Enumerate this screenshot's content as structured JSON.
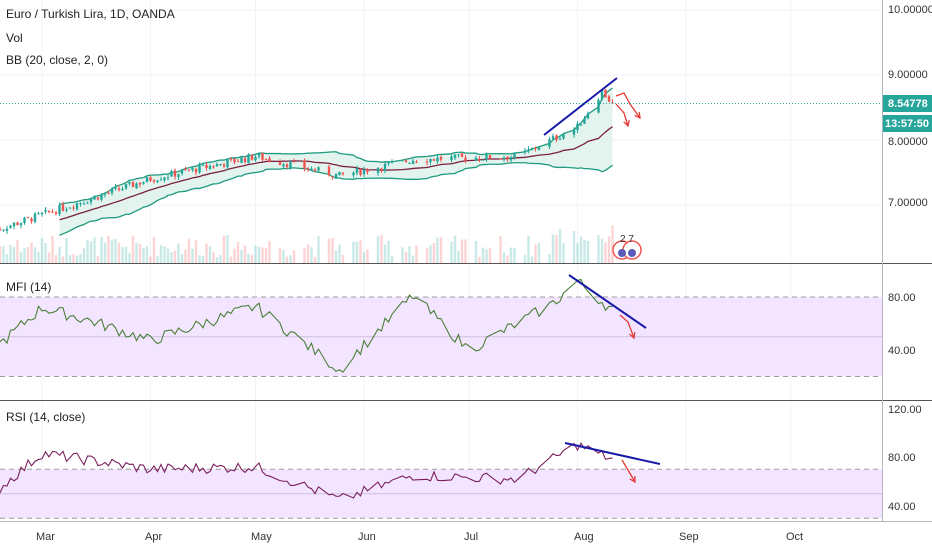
{
  "legend": {
    "main_title": "Euro / Turkish Lira, 1D, OANDA",
    "vol": "Vol",
    "bb": "BB (20, close, 2, 0)",
    "mfi": "MFI (14)",
    "rsi": "RSI (14, close)"
  },
  "price_tag": {
    "value": "8.54778",
    "countdown": "13:57:50",
    "color": "#26a69a"
  },
  "badge": {
    "text": "2 7"
  },
  "colors": {
    "up": "#26a69a",
    "down": "#ef5350",
    "bb_basis": "#7b1f3f",
    "bb_band": "#1e9a7e",
    "bb_fill": "#e3f4ef",
    "osc_fill": "#f3e5ff",
    "mfi_line": "#4a7f36",
    "rsi_line": "#7b1f5c",
    "trendline": "#1a1aa8",
    "arrow": "#e53935",
    "price_line": "#26a69a"
  },
  "chart_data": [
    {
      "type": "candlestick",
      "title": "Euro / Turkish Lira, 1D, OANDA",
      "y_ticks": [
        "10.00000",
        "9.00000",
        "8.00000",
        "7.00000"
      ],
      "ylim": [
        6.5,
        10.1
      ],
      "x_ticks": [
        "Mar",
        "Apr",
        "May",
        "Jun",
        "Jul",
        "Aug",
        "Sep",
        "Oct"
      ],
      "last_price": 8.54778,
      "price_key_points": [
        {
          "date": "Feb 15",
          "close": 6.6
        },
        {
          "date": "Mar 1",
          "close": 6.85
        },
        {
          "date": "Apr 1",
          "close": 7.4
        },
        {
          "date": "May 1",
          "close": 7.75
        },
        {
          "date": "May 25",
          "close": 7.45
        },
        {
          "date": "Jun 15",
          "close": 7.7
        },
        {
          "date": "Jul 15",
          "close": 7.75
        },
        {
          "date": "Aug 1",
          "close": 8.2
        },
        {
          "date": "Aug 8",
          "close": 8.75
        },
        {
          "date": "Aug 11",
          "close": 8.55
        }
      ]
    },
    {
      "type": "line",
      "title": "MFI (14)",
      "y_ticks": [
        "80.00",
        "40.00"
      ],
      "ylim": [
        20,
        100
      ],
      "bands": [
        80,
        20
      ],
      "key_points": [
        {
          "date": "Feb 15",
          "value": 40
        },
        {
          "date": "Mar 1",
          "value": 72
        },
        {
          "date": "Mar 15",
          "value": 62
        },
        {
          "date": "Apr 1",
          "value": 47
        },
        {
          "date": "May 1",
          "value": 73
        },
        {
          "date": "May 25",
          "value": 25
        },
        {
          "date": "Jun 15",
          "value": 81
        },
        {
          "date": "Jul 1",
          "value": 40
        },
        {
          "date": "Jul 25",
          "value": 75
        },
        {
          "date": "Aug 1",
          "value": 92
        },
        {
          "date": "Aug 11",
          "value": 70
        }
      ]
    },
    {
      "type": "line",
      "title": "RSI (14, close)",
      "y_ticks": [
        "120.00",
        "80.00",
        "40.00"
      ],
      "ylim": [
        30,
        130
      ],
      "bands": [
        70,
        30
      ],
      "key_points": [
        {
          "date": "Feb 15",
          "value": 50
        },
        {
          "date": "Mar 1",
          "value": 83
        },
        {
          "date": "Apr 1",
          "value": 70
        },
        {
          "date": "May 1",
          "value": 72
        },
        {
          "date": "May 25",
          "value": 45
        },
        {
          "date": "Jun 15",
          "value": 65
        },
        {
          "date": "Jul 15",
          "value": 62
        },
        {
          "date": "Aug 1",
          "value": 90
        },
        {
          "date": "Aug 11",
          "value": 78
        }
      ]
    }
  ]
}
